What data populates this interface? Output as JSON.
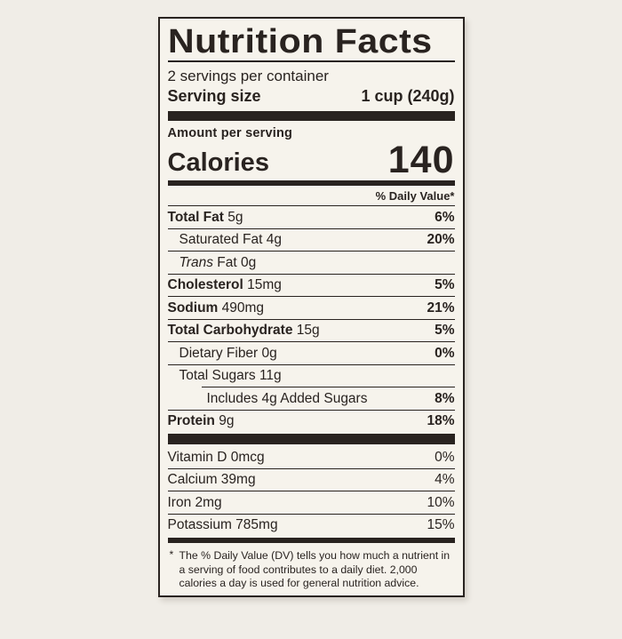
{
  "colors": {
    "ink": "#292320",
    "card_bg": "#f6f3ec",
    "page_bg": "#f0ede7"
  },
  "label": {
    "title": "Nutrition Facts",
    "servings_per_container": "2 servings per container",
    "serving_size_label": "Serving size",
    "serving_size_value": "1 cup (240g)",
    "amount_per_serving": "Amount per serving",
    "calories_label": "Calories",
    "calories_value": "140",
    "daily_value_header": "% Daily Value*",
    "nutrients": [
      {
        "bold": "Total Fat",
        "rest": " 5g",
        "percent": "6%",
        "indent": 0
      },
      {
        "rest": "Saturated Fat 4g",
        "percent": "20%",
        "indent": 1
      },
      {
        "italic": "Trans",
        "rest": " Fat 0g",
        "percent": "",
        "indent": 1
      },
      {
        "bold": "Cholesterol",
        "rest": " 15mg",
        "percent": "5%",
        "indent": 0
      },
      {
        "bold": "Sodium",
        "rest": " 490mg",
        "percent": "21%",
        "indent": 0
      },
      {
        "bold": "Total Carbohydrate",
        "rest": " 15g",
        "percent": "5%",
        "indent": 0
      },
      {
        "rest": "Dietary Fiber 0g",
        "percent": "0%",
        "indent": 1
      },
      {
        "rest": "Total Sugars 11g",
        "percent": "",
        "indent": 1
      },
      {
        "rest": "Includes 4g Added Sugars",
        "percent": "8%",
        "indent": 2,
        "inset_rule": true
      },
      {
        "bold": "Protein",
        "rest": " 9g",
        "percent": "18%",
        "indent": 0
      }
    ],
    "vitamins": [
      {
        "name": "Vitamin D 0mcg",
        "percent": "0%"
      },
      {
        "name": "Calcium 39mg",
        "percent": "4%"
      },
      {
        "name": "Iron 2mg",
        "percent": "10%"
      },
      {
        "name": "Potassium 785mg",
        "percent": "15%"
      }
    ],
    "footnote_marker": "*",
    "footnote_text": "The % Daily Value (DV) tells you how much a nutrient in a serving of food contributes to a daily diet. 2,000 calories a day is used for general nutrition advice."
  }
}
